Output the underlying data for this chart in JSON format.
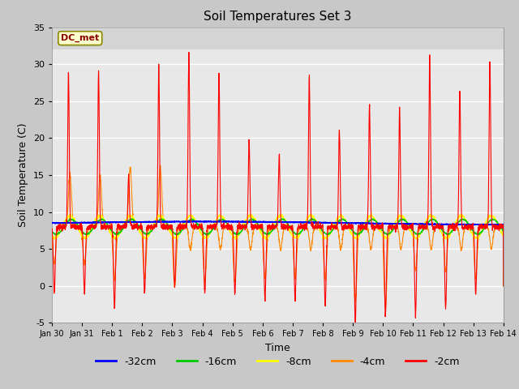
{
  "title": "Soil Temperatures Set 3",
  "xlabel": "Time",
  "ylabel": "Soil Temperature (C)",
  "ylim": [
    -5,
    35
  ],
  "xlim": [
    0,
    15
  ],
  "fig_bg_color": "#c8c8c8",
  "plot_bg_color": "#e8e8e8",
  "upper_band_color": "#d0d0d0",
  "grid_color": "white",
  "annotation_text": "DC_met",
  "xtick_labels": [
    "Jan 30",
    "Jan 31",
    "Feb 1",
    "Feb 2",
    "Feb 3",
    "Feb 4",
    "Feb 5",
    "Feb 6",
    "Feb 7",
    "Feb 8",
    "Feb 9",
    "Feb 10",
    "Feb 11",
    "Feb 12",
    "Feb 13",
    "Feb 14"
  ],
  "xtick_positions": [
    0,
    1,
    2,
    3,
    4,
    5,
    6,
    7,
    8,
    9,
    10,
    11,
    12,
    13,
    14,
    15
  ],
  "ytick_labels": [
    "-5",
    "0",
    "5",
    "10",
    "15",
    "20",
    "25",
    "30",
    "35"
  ],
  "ytick_positions": [
    -5,
    0,
    5,
    10,
    15,
    20,
    25,
    30,
    35
  ],
  "d2_peaks": [
    29,
    29,
    15,
    30,
    31.5,
    29,
    19.5,
    18,
    28.5,
    21,
    24.5,
    24,
    31,
    26.5,
    30
  ],
  "d2_troughs": [
    -1,
    -1,
    -3,
    -1,
    0,
    -1,
    -1,
    -2,
    -2,
    -3,
    -5,
    -4,
    -4,
    -3,
    -1
  ],
  "d4_peaks": [
    15,
    15,
    16,
    16,
    5,
    5,
    5,
    5,
    5,
    5,
    5,
    5,
    5,
    5,
    5
  ],
  "d4_troughs": [
    3,
    3,
    1,
    1,
    0,
    0.5,
    0.5,
    1,
    1,
    1,
    -2,
    -3,
    2,
    2,
    1
  ],
  "d32_base": 8.5,
  "d16_base": 8.0,
  "d8_base": 8.0
}
